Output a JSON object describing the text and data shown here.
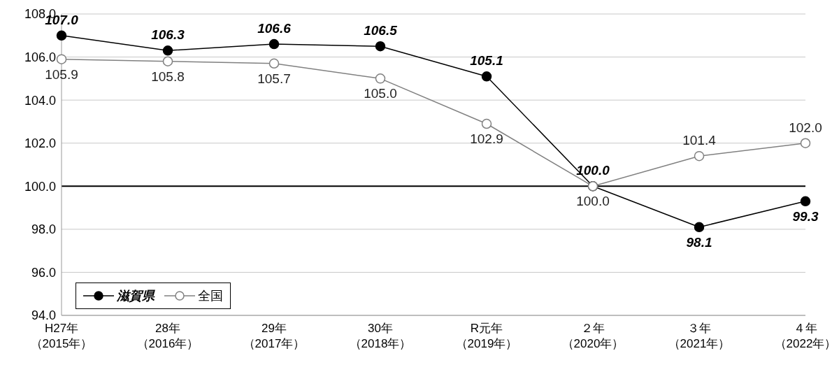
{
  "chart_data": {
    "type": "line",
    "categories": [
      "H27年（2015年）",
      "28年（2016年）",
      "29年（2017年）",
      "30年（2018年）",
      "R元年（2019年）",
      "２年（2020年）",
      "３年（2021年）",
      "４年（2022年）"
    ],
    "series": [
      {
        "name": "滋賀県",
        "color": "#000000",
        "values": [
          107.0,
          106.3,
          106.6,
          106.5,
          105.1,
          100.0,
          98.1,
          99.3
        ],
        "value_labels": [
          "107.0",
          "106.3",
          "106.6",
          "106.5",
          "105.1",
          "100.0",
          "98.1",
          "99.3"
        ]
      },
      {
        "name": "全国",
        "color": "#808080",
        "values": [
          105.9,
          105.8,
          105.7,
          105.0,
          102.9,
          100.0,
          101.4,
          102.0
        ],
        "value_labels": [
          "105.9",
          "105.8",
          "105.7",
          "105.0",
          "102.9",
          "100.0",
          "101.4",
          "102.0"
        ]
      }
    ],
    "ylim": [
      94,
      108
    ],
    "yticks": [
      {
        "value": 94,
        "label": "94.0"
      },
      {
        "value": 96,
        "label": "96.0"
      },
      {
        "value": 98,
        "label": "98.0"
      },
      {
        "value": 100,
        "label": "100.0"
      },
      {
        "value": 102,
        "label": "102.0"
      },
      {
        "value": 104,
        "label": "104.0"
      },
      {
        "value": 106,
        "label": "106.0"
      },
      {
        "value": 108,
        "label": "108.0"
      }
    ],
    "grid": "y",
    "legend": "bottom left",
    "marker": "circle",
    "ref_lines": [
      {
        "axis": "y",
        "value": 100,
        "color": "#000000"
      }
    ]
  }
}
